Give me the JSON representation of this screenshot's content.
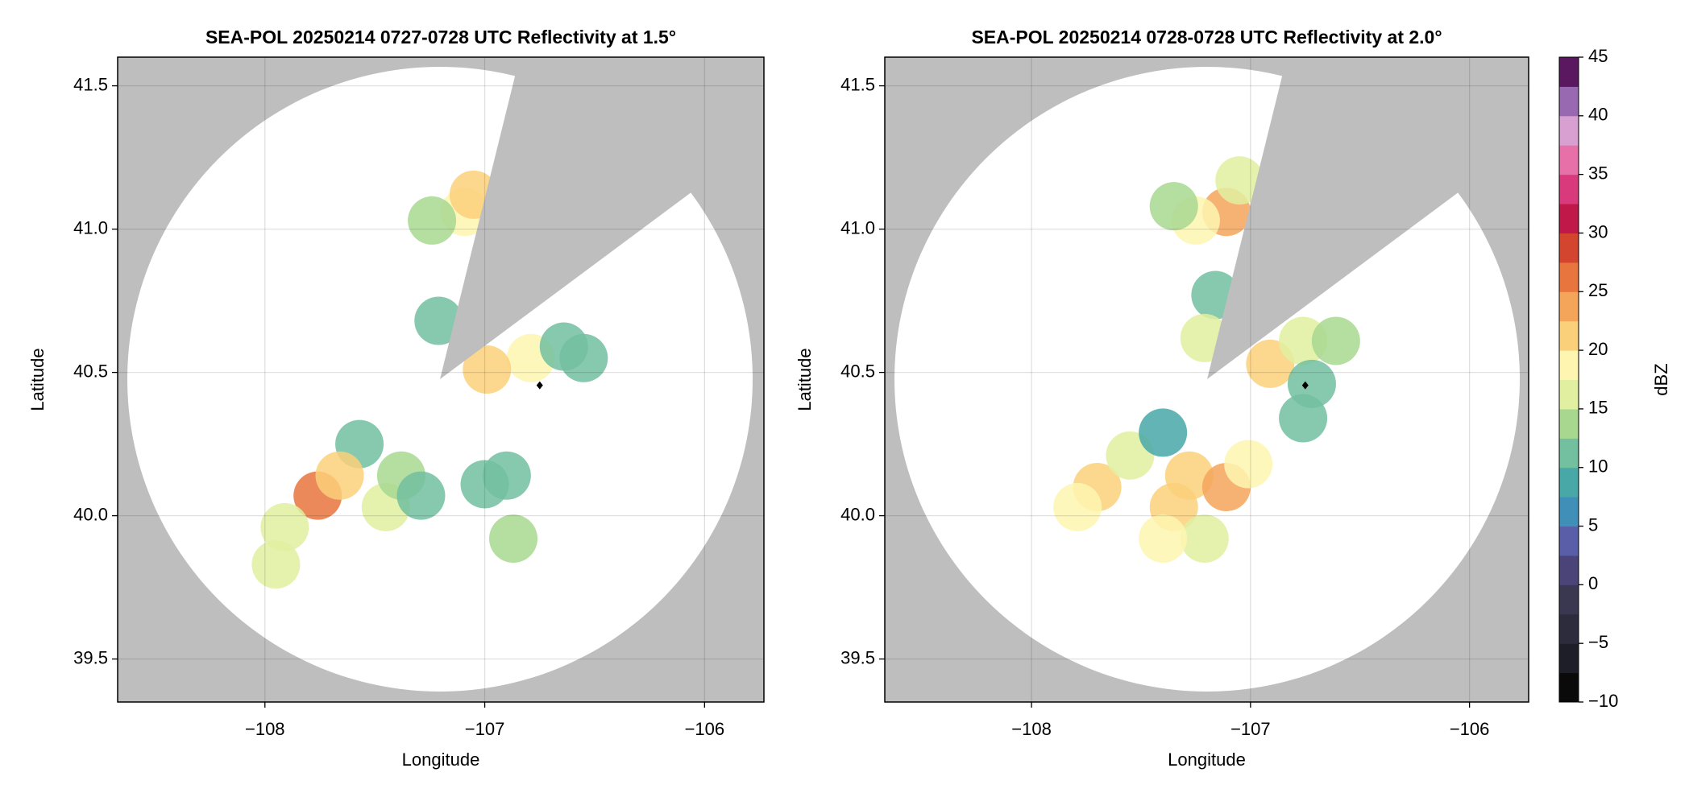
{
  "chart_data": [
    {
      "type": "radar",
      "title": "SEA-POL 20250214 0727-0728 UTC Reflectivity at 1.5°",
      "x_label": "Longitude",
      "y_label": "Latitude",
      "xlim": [
        -108.67,
        -105.73
      ],
      "ylim": [
        39.35,
        41.6
      ],
      "xticks": [
        {
          "value": -108,
          "label": "−108"
        },
        {
          "value": -107,
          "label": "−107"
        },
        {
          "value": -106,
          "label": "−106"
        }
      ],
      "yticks": [
        39.5,
        {
          "value": 40,
          "label": "40.0"
        },
        40.5,
        {
          "value": 41,
          "label": "41.0"
        },
        41.5
      ],
      "grid": true,
      "echoes": {
        "lon": [
          -107.76,
          -107.91,
          -107.57,
          -107.95,
          -107.66,
          -106.79,
          -106.64,
          -106.55,
          -106.99,
          -107.21,
          -107.09,
          -107.24,
          -107.05,
          -107.45,
          -107.38,
          -107.0,
          -106.9,
          -106.87,
          -107.29
        ],
        "lat": [
          40.07,
          39.96,
          40.25,
          39.83,
          40.14,
          40.55,
          40.59,
          40.55,
          40.51,
          40.68,
          41.06,
          41.03,
          41.12,
          40.03,
          40.14,
          40.11,
          40.14,
          39.92,
          40.07
        ],
        "dbz": [
          25,
          17,
          12,
          16,
          22,
          18,
          12,
          10,
          22,
          10,
          18,
          14,
          20,
          15,
          14,
          10,
          12,
          14,
          12
        ]
      },
      "site": {
        "lon": -106.75,
        "lat": 40.455
      }
    },
    {
      "type": "radar",
      "title": "SEA-POL 20250214 0728-0728 UTC Reflectivity at 2.0°",
      "x_label": "Longitude",
      "y_label": "Latitude",
      "xlim": [
        -108.67,
        -105.73
      ],
      "ylim": [
        39.35,
        41.6
      ],
      "xticks": [
        {
          "value": -108,
          "label": "−108"
        },
        {
          "value": -107,
          "label": "−107"
        },
        {
          "value": -106,
          "label": "−106"
        }
      ],
      "yticks": [
        39.5,
        {
          "value": 40,
          "label": "40.0"
        },
        40.5,
        {
          "value": 41,
          "label": "41.0"
        },
        41.5
      ],
      "grid": true,
      "echoes": {
        "lon": [
          -107.7,
          -107.79,
          -107.55,
          -107.4,
          -107.35,
          -107.28,
          -107.11,
          -107.01,
          -107.21,
          -107.4,
          -106.91,
          -106.76,
          -106.61,
          -106.72,
          -106.76,
          -107.11,
          -107.25,
          -107.35,
          -107.05,
          -107.16,
          -107.21
        ],
        "lat": [
          40.1,
          40.03,
          40.21,
          40.29,
          40.03,
          40.14,
          40.1,
          40.18,
          39.92,
          39.92,
          40.53,
          40.61,
          40.61,
          40.46,
          40.34,
          41.06,
          41.03,
          41.08,
          41.17,
          40.77,
          40.62
        ],
        "dbz": [
          22,
          18,
          16,
          8,
          22,
          20,
          24,
          18,
          15,
          18,
          20,
          17,
          14,
          12,
          12,
          24,
          18,
          14,
          16,
          12,
          16
        ]
      },
      "site": {
        "lon": -106.75,
        "lat": 40.455
      }
    },
    {
      "type": "colorbar",
      "label": "dBZ",
      "clim": [
        -10,
        45
      ],
      "ticks": [
        {
          "value": -10,
          "label": "−10"
        },
        {
          "value": -5,
          "label": "−5"
        },
        0,
        5,
        10,
        15,
        20,
        25,
        30,
        35,
        40,
        45
      ],
      "colors": [
        "#0a0a0a",
        "#1e1e28",
        "#2c2c3c",
        "#3a3850",
        "#4a4478",
        "#5a5ea8",
        "#3f8fb8",
        "#48a8a8",
        "#72c0a0",
        "#a8d890",
        "#e0f0a0",
        "#fef6b0",
        "#fbd07a",
        "#f4a55a",
        "#e8743e",
        "#d44530",
        "#c01848",
        "#d83a7c",
        "#e870a8",
        "#d8a0d0",
        "#9868b0",
        "#5a1860"
      ]
    }
  ]
}
